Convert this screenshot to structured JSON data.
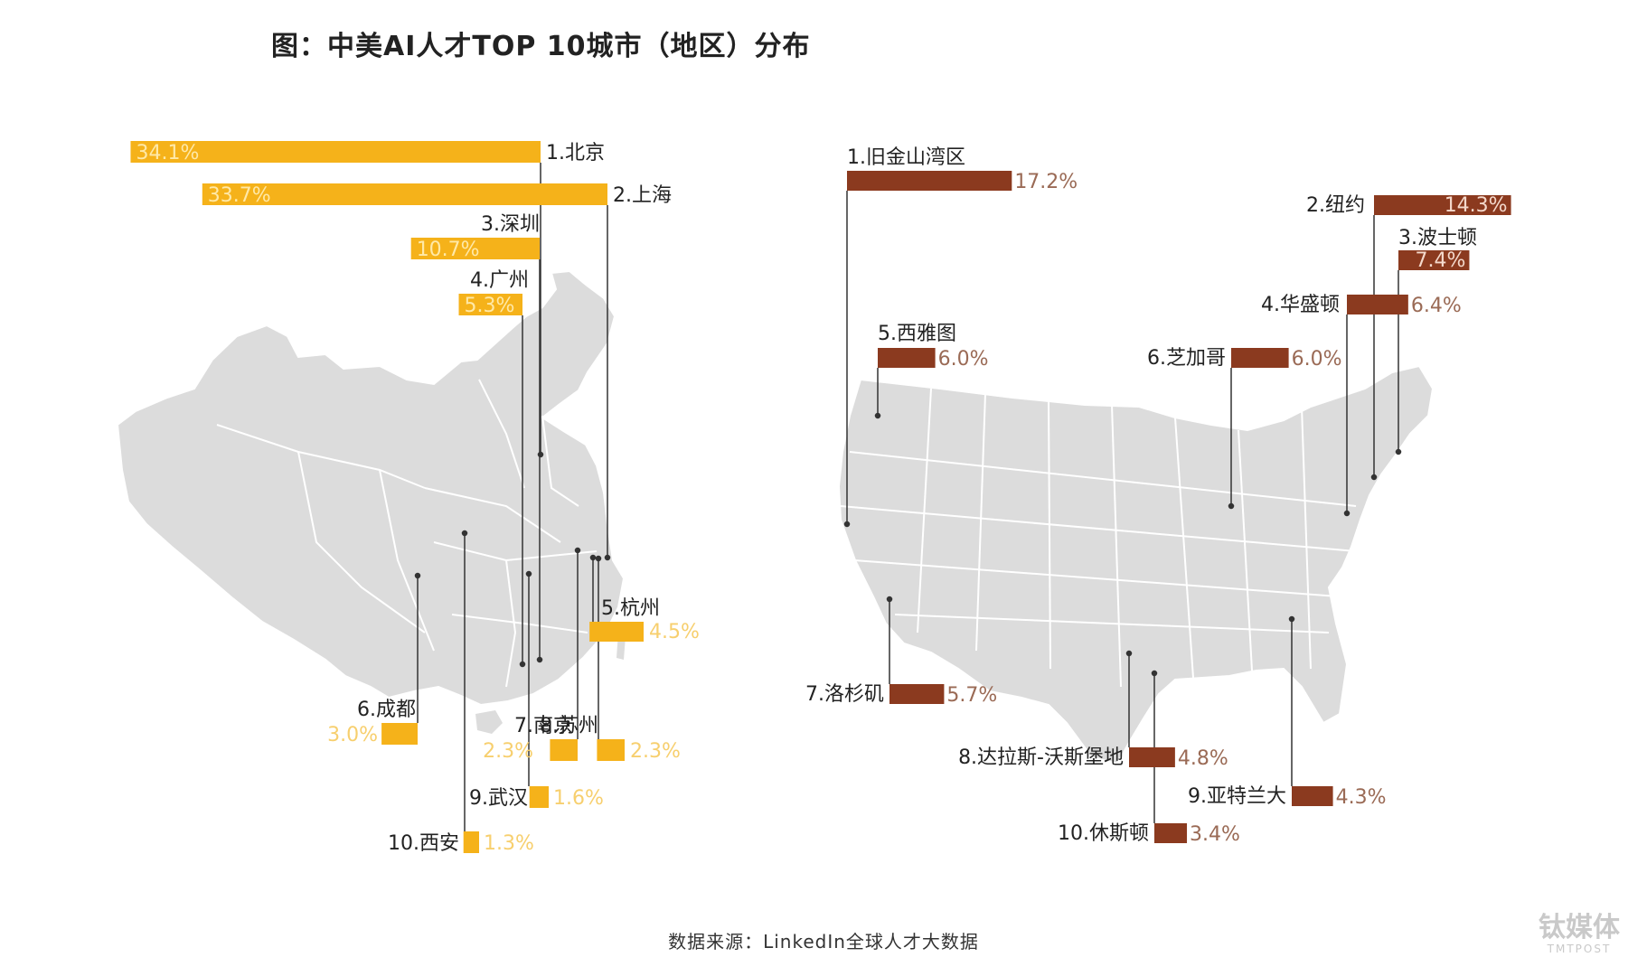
{
  "title": "图：中美AI人才TOP 10城市（地区）分布",
  "source": "数据来源：LinkedIn全球人才大数据",
  "watermark": {
    "cn": "钛媒体",
    "en": "TMTPOST"
  },
  "colors": {
    "china": "#f5b21a",
    "usa": "#8b3a1f",
    "map": "#dcdcdc",
    "leader": "#333333",
    "usa_value": "#9a6a55"
  },
  "chart_data": [
    {
      "type": "bar",
      "region": "China",
      "categories": [
        "1.北京",
        "2.上海",
        "3.深圳",
        "4.广州",
        "5.杭州",
        "6.成都",
        "7.南京",
        "8.苏州",
        "9.武汉",
        "10.西安"
      ],
      "values": [
        34.1,
        33.7,
        10.7,
        5.3,
        4.5,
        3.0,
        2.3,
        2.3,
        1.6,
        1.3
      ],
      "value_labels": [
        "34.1%",
        "33.7%",
        "10.7%",
        "5.3%",
        "4.5%",
        "3.0%",
        "2.3%",
        "2.3%",
        "1.6%",
        "1.3%"
      ],
      "unit": "%"
    },
    {
      "type": "bar",
      "region": "USA",
      "categories": [
        "1.旧金山湾区",
        "2.纽约",
        "3.波士顿",
        "4.华盛顿",
        "5.西雅图",
        "6.芝加哥",
        "7.洛杉矶",
        "8.达拉斯-沃斯堡地",
        "9.亚特兰大",
        "10.休斯顿"
      ],
      "values": [
        17.2,
        14.3,
        7.4,
        6.4,
        6.0,
        6.0,
        5.7,
        4.8,
        4.3,
        3.4
      ],
      "value_labels": [
        "17.2%",
        "14.3%",
        "7.4%",
        "6.4%",
        "6.0%",
        "6.0%",
        "5.7%",
        "4.8%",
        "4.3%",
        "3.4%"
      ],
      "unit": "%"
    }
  ]
}
